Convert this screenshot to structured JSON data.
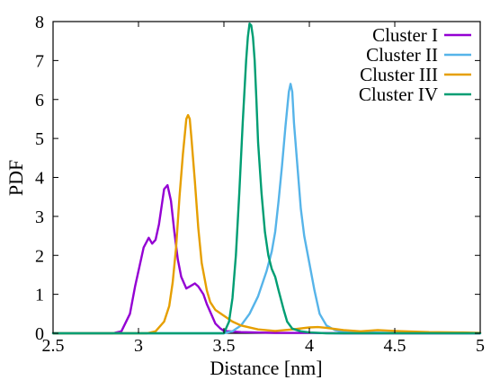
{
  "chart_data": {
    "type": "line",
    "title": "",
    "xlabel": "Distance [nm]",
    "ylabel": "PDF",
    "xlim": [
      2.5,
      5
    ],
    "ylim": [
      0,
      8
    ],
    "xticks": [
      "2.5",
      "3",
      "3.5",
      "4",
      "4.5",
      "5"
    ],
    "yticks": [
      "0",
      "1",
      "2",
      "3",
      "4",
      "5",
      "6",
      "7",
      "8"
    ],
    "grid": false,
    "legend_position": "top-right",
    "series": [
      {
        "name": "Cluster I",
        "color": "#9400d3",
        "x": [
          2.5,
          2.85,
          2.9,
          2.95,
          2.98,
          3.0,
          3.03,
          3.06,
          3.08,
          3.1,
          3.12,
          3.15,
          3.17,
          3.19,
          3.21,
          3.23,
          3.25,
          3.28,
          3.3,
          3.33,
          3.35,
          3.38,
          3.4,
          3.43,
          3.45,
          3.48,
          3.5,
          3.6,
          3.8,
          4.0,
          4.2,
          4.5,
          5.0
        ],
        "y": [
          0,
          0,
          0.05,
          0.5,
          1.2,
          1.6,
          2.2,
          2.45,
          2.3,
          2.4,
          2.8,
          3.7,
          3.8,
          3.4,
          2.6,
          1.9,
          1.45,
          1.15,
          1.2,
          1.28,
          1.2,
          1.0,
          0.75,
          0.45,
          0.25,
          0.12,
          0.06,
          0.03,
          0.01,
          0.01,
          0,
          0,
          0
        ]
      },
      {
        "name": "Cluster II",
        "color": "#56b4e9",
        "x": [
          2.5,
          3.5,
          3.55,
          3.6,
          3.65,
          3.7,
          3.75,
          3.78,
          3.8,
          3.82,
          3.84,
          3.86,
          3.88,
          3.89,
          3.9,
          3.91,
          3.93,
          3.95,
          3.97,
          4.0,
          4.03,
          4.06,
          4.1,
          4.15,
          4.2,
          4.3,
          4.5,
          5.0
        ],
        "y": [
          0,
          0,
          0.05,
          0.2,
          0.5,
          0.95,
          1.6,
          2.1,
          2.6,
          3.4,
          4.3,
          5.3,
          6.2,
          6.4,
          6.2,
          5.4,
          4.3,
          3.2,
          2.5,
          1.8,
          1.1,
          0.5,
          0.2,
          0.08,
          0.04,
          0.02,
          0.01,
          0
        ]
      },
      {
        "name": "Cluster III",
        "color": "#e69f00",
        "x": [
          2.5,
          3.05,
          3.1,
          3.15,
          3.18,
          3.2,
          3.22,
          3.24,
          3.26,
          3.28,
          3.29,
          3.3,
          3.31,
          3.33,
          3.35,
          3.37,
          3.4,
          3.42,
          3.45,
          3.5,
          3.55,
          3.6,
          3.7,
          3.8,
          3.9,
          4.0,
          4.05,
          4.1,
          4.2,
          4.3,
          4.4,
          4.5,
          4.7,
          4.9,
          5.0
        ],
        "y": [
          0,
          0,
          0.05,
          0.3,
          0.7,
          1.3,
          2.2,
          3.5,
          4.6,
          5.5,
          5.6,
          5.5,
          5.0,
          3.9,
          2.7,
          1.8,
          1.1,
          0.8,
          0.6,
          0.45,
          0.3,
          0.2,
          0.1,
          0.06,
          0.1,
          0.15,
          0.16,
          0.14,
          0.08,
          0.05,
          0.08,
          0.06,
          0.03,
          0.02,
          0.01
        ]
      },
      {
        "name": "Cluster IV",
        "color": "#009e73",
        "x": [
          2.5,
          3.5,
          3.53,
          3.55,
          3.57,
          3.59,
          3.61,
          3.63,
          3.64,
          3.65,
          3.66,
          3.67,
          3.68,
          3.69,
          3.7,
          3.72,
          3.74,
          3.76,
          3.78,
          3.8,
          3.82,
          3.85,
          3.87,
          3.9,
          3.95,
          4.0,
          4.1,
          5.0
        ],
        "y": [
          0,
          0,
          0.3,
          0.9,
          2.0,
          3.6,
          5.4,
          7.0,
          7.6,
          7.95,
          7.9,
          7.6,
          7.0,
          6.0,
          4.9,
          3.6,
          2.6,
          2.0,
          1.65,
          1.45,
          1.1,
          0.6,
          0.3,
          0.12,
          0.05,
          0.02,
          0,
          0
        ]
      }
    ]
  }
}
